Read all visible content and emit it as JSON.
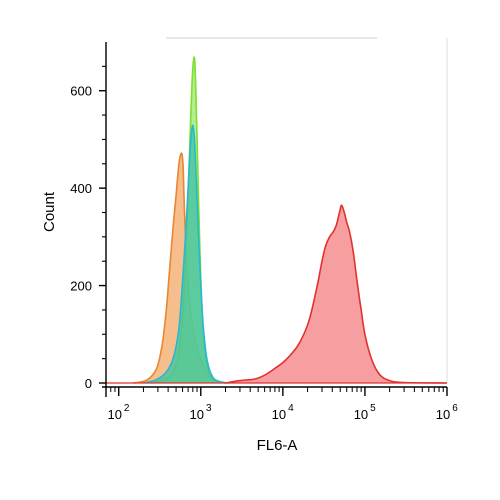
{
  "chart_data": {
    "type": "area",
    "title": "",
    "xlabel": "FL6-A",
    "ylabel": "Count",
    "x_scale": "log",
    "xlim": [
      70,
      1000000
    ],
    "ylim": [
      0,
      700
    ],
    "grid": false,
    "legend": "none",
    "x_ticks": [
      {
        "value": 100,
        "base": "10",
        "exp": "2"
      },
      {
        "value": 1000,
        "base": "10",
        "exp": "3"
      },
      {
        "value": 10000,
        "base": "10",
        "exp": "4"
      },
      {
        "value": 100000,
        "base": "10",
        "exp": "5"
      },
      {
        "value": 1000000,
        "base": "10",
        "exp": "6"
      }
    ],
    "y_ticks": [
      {
        "value": 0,
        "label": "0"
      },
      {
        "value": 200,
        "label": "200"
      },
      {
        "value": 400,
        "label": "400"
      },
      {
        "value": 600,
        "label": "600"
      }
    ],
    "series": [
      {
        "color": "#e8872e",
        "fill": "#f2a866",
        "points": [
          [
            150,
            0
          ],
          [
            220,
            6
          ],
          [
            290,
            30
          ],
          [
            340,
            80
          ],
          [
            380,
            150
          ],
          [
            420,
            240
          ],
          [
            460,
            320
          ],
          [
            500,
            385
          ],
          [
            530,
            435
          ],
          [
            560,
            465
          ],
          [
            590,
            470
          ],
          [
            610,
            440
          ],
          [
            640,
            330
          ],
          [
            690,
            220
          ],
          [
            760,
            140
          ],
          [
            880,
            80
          ],
          [
            1050,
            40
          ],
          [
            1300,
            12
          ],
          [
            1600,
            3
          ],
          [
            2000,
            0
          ]
        ]
      },
      {
        "color": "#7ddf2e",
        "fill": "#9ae86a",
        "points": [
          [
            250,
            0
          ],
          [
            350,
            6
          ],
          [
            440,
            18
          ],
          [
            520,
            45
          ],
          [
            580,
            110
          ],
          [
            630,
            200
          ],
          [
            680,
            320
          ],
          [
            720,
            450
          ],
          [
            760,
            560
          ],
          [
            790,
            630
          ],
          [
            820,
            665
          ],
          [
            845,
            660
          ],
          [
            875,
            590
          ],
          [
            920,
            440
          ],
          [
            980,
            260
          ],
          [
            1060,
            120
          ],
          [
            1150,
            50
          ],
          [
            1300,
            15
          ],
          [
            1550,
            4
          ],
          [
            2000,
            0
          ]
        ]
      },
      {
        "color": "#27b8d6",
        "fill": "#3fc0a4",
        "points": [
          [
            200,
            0
          ],
          [
            280,
            6
          ],
          [
            370,
            20
          ],
          [
            460,
            50
          ],
          [
            540,
            110
          ],
          [
            600,
            210
          ],
          [
            660,
            320
          ],
          [
            710,
            420
          ],
          [
            750,
            490
          ],
          [
            785,
            525
          ],
          [
            810,
            525
          ],
          [
            840,
            495
          ],
          [
            880,
            420
          ],
          [
            930,
            320
          ],
          [
            1000,
            200
          ],
          [
            1080,
            110
          ],
          [
            1200,
            45
          ],
          [
            1400,
            12
          ],
          [
            1700,
            3
          ],
          [
            2200,
            0
          ]
        ]
      },
      {
        "color": "#e0332f",
        "fill": "#f47d80",
        "points": [
          [
            2000,
            0
          ],
          [
            3000,
            5
          ],
          [
            4500,
            8
          ],
          [
            6000,
            16
          ],
          [
            8000,
            30
          ],
          [
            10000,
            42
          ],
          [
            12000,
            55
          ],
          [
            15000,
            75
          ],
          [
            18000,
            100
          ],
          [
            21000,
            130
          ],
          [
            24000,
            170
          ],
          [
            27000,
            210
          ],
          [
            30000,
            250
          ],
          [
            33000,
            280
          ],
          [
            37000,
            300
          ],
          [
            41000,
            310
          ],
          [
            45000,
            325
          ],
          [
            49000,
            350
          ],
          [
            52000,
            365
          ],
          [
            56000,
            350
          ],
          [
            60000,
            330
          ],
          [
            65000,
            310
          ],
          [
            72000,
            270
          ],
          [
            80000,
            210
          ],
          [
            90000,
            150
          ],
          [
            100000,
            100
          ],
          [
            120000,
            50
          ],
          [
            150000,
            18
          ],
          [
            200000,
            5
          ],
          [
            300000,
            1
          ],
          [
            1000000,
            0
          ]
        ]
      }
    ]
  }
}
